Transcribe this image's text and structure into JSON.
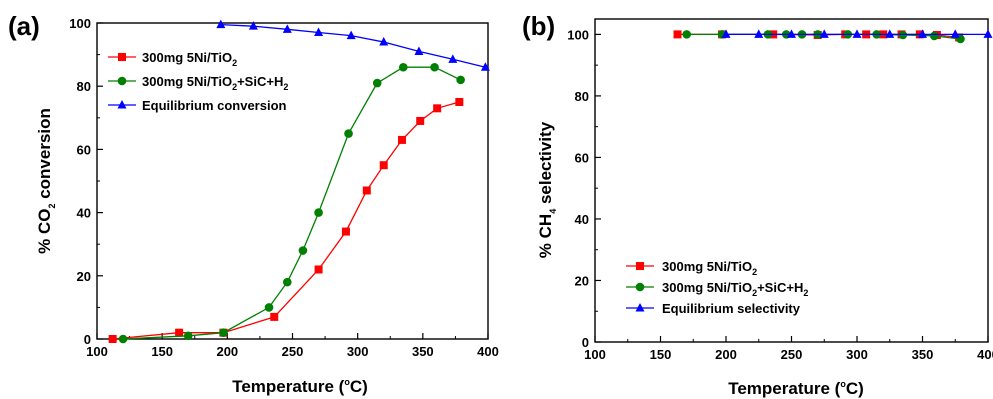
{
  "chart_data": [
    {
      "type": "line",
      "panel_label": "(a)",
      "xlabel": "Temperature (°C)",
      "ylabel": "% CO2 conversion",
      "xlim": [
        100,
        400
      ],
      "ylim": [
        0,
        100
      ],
      "x_ticks": [
        100,
        150,
        200,
        250,
        300,
        350,
        400
      ],
      "y_ticks": [
        0,
        20,
        40,
        60,
        80,
        100
      ],
      "grid": false,
      "legend_position": "top-left",
      "series": [
        {
          "name": "300mg 5Ni/TiO2",
          "color": "#ff0000",
          "marker": "square",
          "x": [
            112,
            163,
            197,
            236,
            270,
            291,
            307,
            320,
            334,
            348,
            361,
            378
          ],
          "y": [
            0,
            2,
            2,
            7,
            22,
            34,
            47,
            55,
            63,
            69,
            73,
            75
          ]
        },
        {
          "name": "300mg 5Ni/TiO2+SiC+H2",
          "color": "#008000",
          "marker": "circle",
          "x": [
            120,
            170,
            197,
            232,
            246,
            258,
            270,
            293,
            315,
            335,
            359,
            379
          ],
          "y": [
            0,
            1,
            2,
            10,
            18,
            28,
            40,
            65,
            81,
            86,
            86,
            82
          ]
        },
        {
          "name": "Equilibrium conversion",
          "color": "#0000ff",
          "marker": "triangle",
          "x": [
            195,
            220,
            246,
            270,
            295,
            320,
            347,
            373,
            398
          ],
          "y": [
            99.5,
            99,
            98,
            97,
            96,
            94,
            91,
            88.5,
            86
          ]
        }
      ]
    },
    {
      "type": "line",
      "panel_label": "(b)",
      "xlabel": "Temperature (°C)",
      "ylabel": "% CH4 selectivity",
      "xlim": [
        100,
        400
      ],
      "ylim": [
        0,
        105
      ],
      "x_ticks": [
        100,
        150,
        200,
        250,
        300,
        350,
        400
      ],
      "y_ticks": [
        0,
        20,
        40,
        60,
        80,
        100
      ],
      "grid": false,
      "legend_position": "bottom-left",
      "series": [
        {
          "name": "300mg 5Ni/TiO2",
          "color": "#ff0000",
          "marker": "square",
          "x": [
            163,
            197,
            236,
            270,
            291,
            307,
            320,
            334,
            348,
            361,
            378
          ],
          "y": [
            100,
            100,
            100,
            99.8,
            100,
            100,
            100,
            100,
            100,
            99.8,
            99
          ]
        },
        {
          "name": "300mg 5Ni/TiO2+SiC+H2",
          "color": "#008000",
          "marker": "circle",
          "x": [
            170,
            197,
            232,
            246,
            258,
            270,
            293,
            315,
            335,
            359,
            379
          ],
          "y": [
            100,
            100,
            100,
            100,
            100,
            100,
            100,
            100,
            99.8,
            99.5,
            98.5
          ]
        },
        {
          "name": "Equilibrium selectivity",
          "color": "#0000ff",
          "marker": "triangle",
          "x": [
            200,
            225,
            250,
            275,
            300,
            325,
            350,
            375,
            400
          ],
          "y": [
            100,
            100,
            100,
            100,
            100,
            100,
            100,
            100,
            100
          ]
        }
      ]
    }
  ]
}
